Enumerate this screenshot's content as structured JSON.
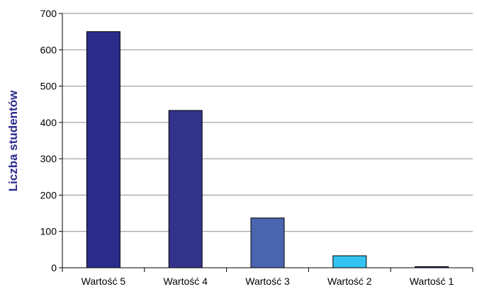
{
  "chart_data": {
    "type": "bar",
    "title": "",
    "xlabel": "",
    "ylabel": "Liczba studentów",
    "categories": [
      "Wartość 5",
      "Wartość 4",
      "Wartość 3",
      "Wartość 2",
      "Wartość 1"
    ],
    "values": [
      650,
      433,
      137,
      33,
      3
    ],
    "bar_colors": [
      "#2B2B8C",
      "#33338C",
      "#4A64B0",
      "#33C3F0",
      "#2B2B8C"
    ],
    "ylim": [
      0,
      700
    ],
    "yticks": [
      0,
      100,
      200,
      300,
      400,
      500,
      600,
      700
    ],
    "ytick_labels": [
      "0",
      "100",
      "200",
      "300",
      "400",
      "500",
      "600",
      "700"
    ],
    "grid": true,
    "legend": "none",
    "ylabel_color": "#2B2B8C",
    "grid_color": "#8C8C8C"
  }
}
